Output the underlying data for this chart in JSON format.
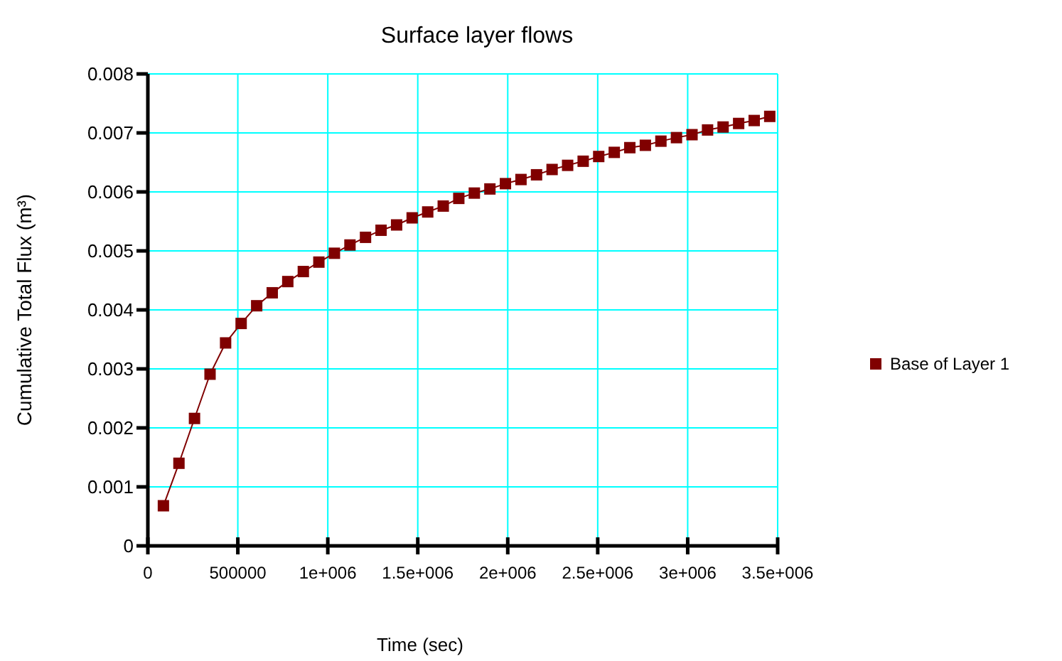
{
  "chart_data": {
    "type": "line",
    "title": "Surface layer flows",
    "xlabel": "Time (sec)",
    "ylabel": "Cumulative Total Flux (m³)",
    "x": [
      86400,
      172800,
      259200,
      345600,
      432000,
      518400,
      604800,
      691200,
      777600,
      864000,
      950400,
      1036800,
      1123200,
      1209600,
      1296000,
      1382400,
      1468800,
      1555200,
      1641600,
      1728000,
      1814400,
      1900800,
      1987200,
      2073600,
      2160000,
      2246400,
      2332800,
      2419200,
      2505600,
      2592000,
      2678400,
      2764800,
      2851200,
      2937600,
      3024000,
      3110400,
      3196800,
      3283200,
      3369600,
      3456000
    ],
    "series": [
      {
        "name": "Base of Layer 1",
        "color": "#800000",
        "values": [
          0.00068,
          0.0014,
          0.00216,
          0.00291,
          0.00344,
          0.00377,
          0.00407,
          0.00429,
          0.00448,
          0.00465,
          0.00481,
          0.00496,
          0.0051,
          0.00523,
          0.00535,
          0.00544,
          0.00556,
          0.00566,
          0.00576,
          0.00589,
          0.00598,
          0.00605,
          0.00614,
          0.00621,
          0.00629,
          0.00638,
          0.00645,
          0.00652,
          0.0066,
          0.00667,
          0.00675,
          0.00679,
          0.00686,
          0.00692,
          0.00697,
          0.00705,
          0.0071,
          0.00716,
          0.00721,
          0.00728
        ]
      }
    ],
    "xlim": [
      0,
      3500000
    ],
    "xticks": [
      0,
      500000,
      {
        "value": 1000000,
        "label": "1e+006"
      },
      {
        "value": 1500000,
        "label": "1.5e+006"
      },
      {
        "value": 2000000,
        "label": "2e+006"
      },
      {
        "value": 2500000,
        "label": "2.5e+006"
      },
      {
        "value": 3000000,
        "label": "3e+006"
      },
      {
        "value": 3500000,
        "label": "3.5e+006"
      }
    ],
    "ylim": [
      0,
      0.008
    ],
    "yticks": [
      0,
      0.001,
      0.002,
      0.003,
      0.004,
      0.005,
      0.006,
      0.007,
      0.008
    ],
    "grid": true,
    "legend": "right",
    "marker": "square",
    "line_style": "solid"
  }
}
